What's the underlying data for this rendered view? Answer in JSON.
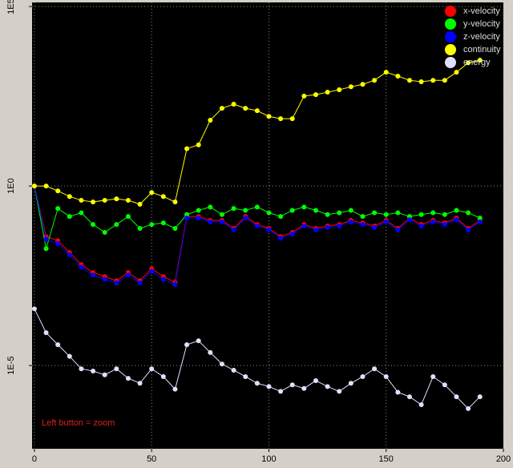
{
  "chart_data": {
    "type": "line",
    "log_y": true,
    "grid": true,
    "legend": "upper right",
    "annotation": "Left button = zoom",
    "x": [
      0,
      5,
      10,
      15,
      20,
      25,
      30,
      35,
      40,
      45,
      50,
      55,
      60,
      65,
      70,
      75,
      80,
      85,
      90,
      95,
      100,
      105,
      110,
      115,
      120,
      125,
      130,
      135,
      140,
      145,
      150,
      155,
      160,
      165,
      170,
      175,
      180,
      185,
      190
    ],
    "xlim": [
      -1,
      200
    ],
    "xticks": [
      0,
      50,
      100,
      150,
      200
    ],
    "ylim": [
      4.8e-08,
      130000
    ],
    "yticks": [
      {
        "value": 100000,
        "label": "1E5"
      },
      {
        "value": 1,
        "label": "1E0"
      },
      {
        "value": 1e-05,
        "label": "1E-5"
      }
    ],
    "series": [
      {
        "name": "x-velocity",
        "color": "#ff0000",
        "values": [
          1,
          0.039,
          0.03,
          0.014,
          0.0065,
          0.0039,
          0.003,
          0.0023,
          0.0039,
          0.0023,
          0.005,
          0.003,
          0.0021,
          0.142,
          0.142,
          0.11,
          0.11,
          0.066,
          0.142,
          0.085,
          0.066,
          0.039,
          0.051,
          0.085,
          0.066,
          0.077,
          0.085,
          0.11,
          0.094,
          0.077,
          0.11,
          0.066,
          0.128,
          0.085,
          0.11,
          0.094,
          0.128,
          0.066,
          0.11
        ]
      },
      {
        "name": "y-velocity",
        "color": "#00ff00",
        "values": [
          1,
          0.018,
          0.237,
          0.142,
          0.18,
          0.085,
          0.051,
          0.085,
          0.142,
          0.066,
          0.085,
          0.094,
          0.066,
          0.16,
          0.21,
          0.26,
          0.16,
          0.237,
          0.21,
          0.26,
          0.18,
          0.142,
          0.21,
          0.26,
          0.21,
          0.16,
          0.18,
          0.21,
          0.142,
          0.18,
          0.16,
          0.18,
          0.142,
          0.16,
          0.18,
          0.16,
          0.21,
          0.18,
          0.128
        ]
      },
      {
        "name": "z-velocity",
        "color": "#0000ff",
        "values": [
          1,
          0.033,
          0.025,
          0.012,
          0.0055,
          0.0033,
          0.0025,
          0.002,
          0.0033,
          0.002,
          0.0042,
          0.0025,
          0.0018,
          0.128,
          0.128,
          0.1,
          0.1,
          0.06,
          0.128,
          0.077,
          0.06,
          0.035,
          0.046,
          0.077,
          0.06,
          0.07,
          0.077,
          0.1,
          0.085,
          0.07,
          0.1,
          0.06,
          0.115,
          0.077,
          0.1,
          0.085,
          0.115,
          0.06,
          0.1
        ]
      },
      {
        "name": "continuity",
        "color": "#ffff00",
        "values": [
          1,
          1,
          0.73,
          0.51,
          0.4,
          0.36,
          0.4,
          0.44,
          0.4,
          0.31,
          0.66,
          0.51,
          0.36,
          11,
          14,
          68,
          146,
          190,
          146,
          125,
          87,
          75,
          75,
          320,
          350,
          410,
          480,
          580,
          680,
          880,
          1480,
          1150,
          880,
          800,
          880,
          880,
          1480,
          2700,
          3200
        ]
      },
      {
        "name": "energy",
        "color": "#e0e0ff",
        "values": [
          0.00038,
          8.2e-05,
          3.8e-05,
          1.8e-05,
          8.1e-06,
          7e-06,
          5.5e-06,
          8.1e-06,
          4.4e-06,
          3.2e-06,
          8.1e-06,
          4.9e-06,
          2.2e-06,
          3.8e-05,
          4.9e-05,
          2.3e-05,
          1.1e-05,
          7.4e-06,
          4.9e-06,
          3.2e-06,
          2.6e-06,
          1.9e-06,
          2.9e-06,
          2.3e-06,
          3.8e-06,
          2.6e-06,
          1.9e-06,
          3.2e-06,
          4.9e-06,
          8.1e-06,
          4.9e-06,
          1.8e-06,
          1.35e-06,
          8.1e-07,
          4.9e-06,
          2.9e-06,
          1.35e-06,
          6.3e-07,
          1.35e-06
        ]
      }
    ]
  }
}
